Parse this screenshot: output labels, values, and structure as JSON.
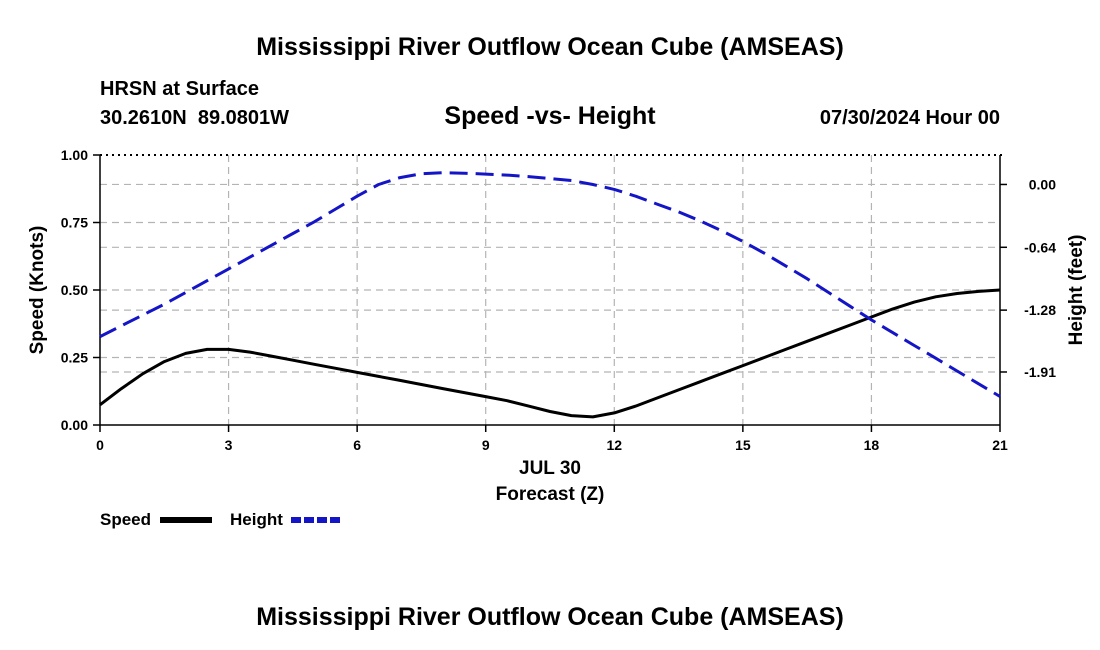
{
  "page": {
    "top_title": "Mississippi River Outflow Ocean Cube (AMSEAS)",
    "bottom_title": "Mississippi River Outflow Ocean Cube (AMSEAS)",
    "station": "HRSN at Surface",
    "coords": "30.2610N  89.0801W",
    "date": "07/30/2024 Hour 00"
  },
  "chart_data": {
    "type": "line",
    "title": "Speed -vs- Height",
    "xlabel": "Forecast (Z)",
    "xdate": "JUL 30",
    "xlim": [
      0,
      21
    ],
    "xticks": [
      0,
      3,
      6,
      9,
      12,
      15,
      18,
      21
    ],
    "ylabel_left": "Speed (Knots)",
    "ylim_left": [
      0,
      1.0
    ],
    "yticks_left": [
      "0.00",
      "0.25",
      "0.50",
      "0.75",
      "1.00"
    ],
    "ylabel_right": "Height (feet)",
    "ylim_right": [
      -2.45,
      0.3
    ],
    "yticks_right": [
      "0.00",
      "-0.64",
      "-1.28",
      "-1.91"
    ],
    "grid": true,
    "legend": [
      {
        "label": "Speed",
        "color": "#000000",
        "style": "solid"
      },
      {
        "label": "Height",
        "color": "#1515c8",
        "style": "dashed"
      }
    ],
    "series": [
      {
        "name": "Speed",
        "axis": "left",
        "color": "#000000",
        "dash": "solid",
        "x": [
          0,
          0.5,
          1,
          1.5,
          2,
          2.5,
          3,
          3.5,
          4,
          4.5,
          5,
          5.5,
          6,
          6.5,
          7,
          7.5,
          8,
          8.5,
          9,
          9.5,
          10,
          10.5,
          11,
          11.5,
          12,
          12.5,
          13,
          13.5,
          14,
          14.5,
          15,
          15.5,
          16,
          16.5,
          17,
          17.5,
          18,
          18.5,
          19,
          19.5,
          20,
          20.5,
          21
        ],
        "values": [
          0.075,
          0.135,
          0.19,
          0.235,
          0.265,
          0.28,
          0.28,
          0.27,
          0.255,
          0.24,
          0.225,
          0.21,
          0.195,
          0.18,
          0.165,
          0.15,
          0.135,
          0.12,
          0.105,
          0.09,
          0.07,
          0.05,
          0.035,
          0.03,
          0.045,
          0.07,
          0.1,
          0.13,
          0.16,
          0.19,
          0.22,
          0.25,
          0.28,
          0.31,
          0.34,
          0.37,
          0.4,
          0.43,
          0.455,
          0.475,
          0.487,
          0.495,
          0.5
        ]
      },
      {
        "name": "Height",
        "axis": "right",
        "color": "#1515c8",
        "dash": "dashed",
        "x": [
          0,
          0.5,
          1,
          1.5,
          2,
          2.5,
          3,
          3.5,
          4,
          4.5,
          5,
          5.5,
          6,
          6.5,
          7,
          7.5,
          8,
          8.5,
          9,
          9.5,
          10,
          10.5,
          11,
          11.5,
          12,
          12.5,
          13,
          13.5,
          14,
          14.5,
          15,
          15.5,
          16,
          16.5,
          17,
          17.5,
          18,
          18.5,
          19,
          19.5,
          20,
          20.5,
          21
        ],
        "values": [
          -1.55,
          -1.44,
          -1.33,
          -1.22,
          -1.1,
          -0.98,
          -0.86,
          -0.74,
          -0.62,
          -0.5,
          -0.38,
          -0.25,
          -0.12,
          0.0,
          0.07,
          0.11,
          0.12,
          0.115,
          0.105,
          0.095,
          0.08,
          0.06,
          0.04,
          0.0,
          -0.05,
          -0.12,
          -0.2,
          -0.28,
          -0.37,
          -0.47,
          -0.58,
          -0.7,
          -0.83,
          -0.96,
          -1.1,
          -1.24,
          -1.38,
          -1.51,
          -1.64,
          -1.77,
          -1.9,
          -2.03,
          -2.16
        ]
      }
    ]
  }
}
